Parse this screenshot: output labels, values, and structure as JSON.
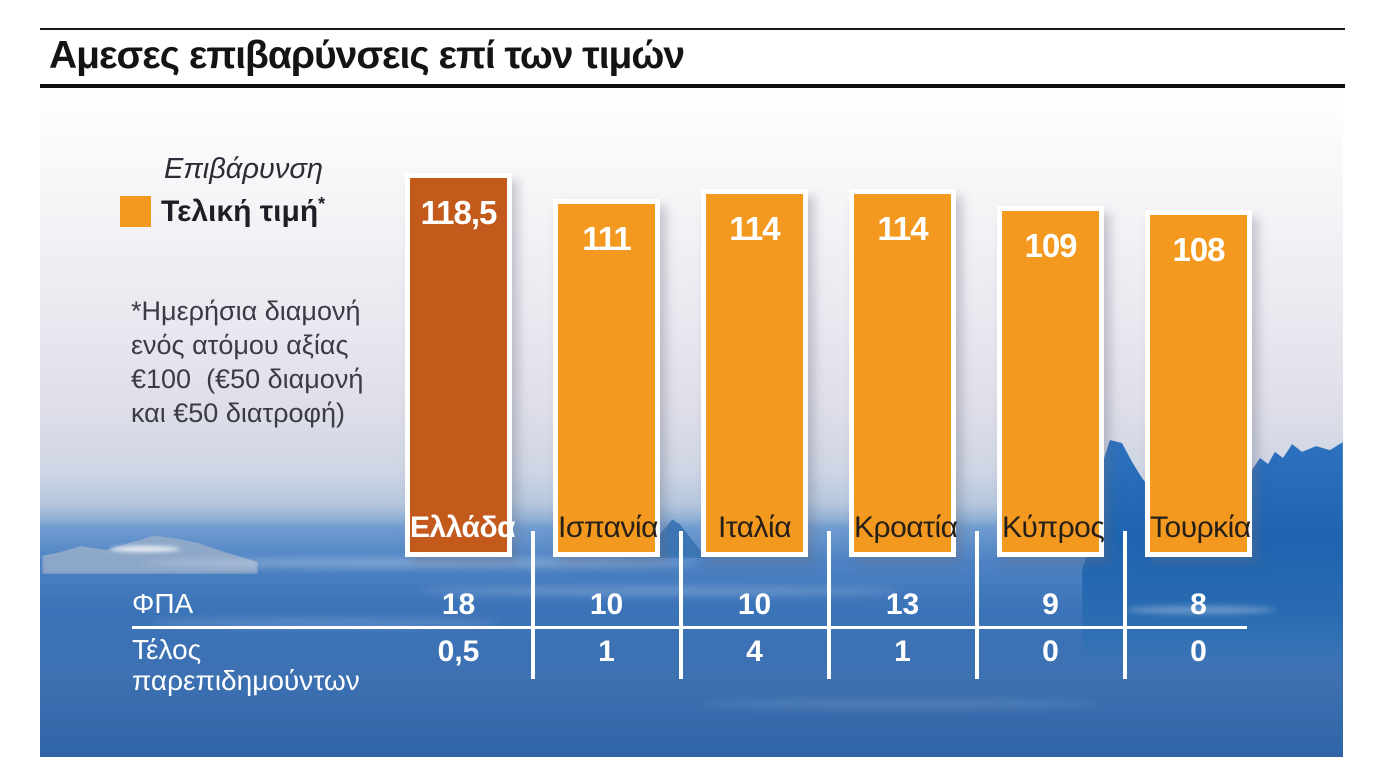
{
  "title": "Αμεσες επιβαρύνσεις επί των τιμών",
  "legend": {
    "surcharge_label": "Επιβάρυνση",
    "final_price_label": "Τελική τιμή",
    "asterisk": "*",
    "swatch_color": "#F4991F"
  },
  "footnote": {
    "lines": [
      "*Ημερήσια διαμονή",
      "ενός ατόμου αξίας",
      "€100  (€50 διαμονή",
      "και €50 διατροφή)"
    ]
  },
  "chart_data": {
    "type": "bar",
    "title": "Αμεσες επιβαρύνσεις επί των τιμών",
    "categories": [
      "Ελλάδα",
      "Ισπανία",
      "Ιταλία",
      "Κροατία",
      "Κύπρος",
      "Τουρκία"
    ],
    "series": [
      {
        "name": "Τελική τιμή*",
        "values": [
          118.5,
          111,
          114,
          114,
          109,
          108
        ],
        "display_labels": [
          "118,5",
          "111",
          "114",
          "114",
          "109",
          "108"
        ]
      }
    ],
    "highlight_index": 0,
    "legend_position": "top-left",
    "value_axis_hidden": true,
    "colors": {
      "bar": "#F4991F",
      "bar_highlight": "#C35A1B",
      "value_text": "#FFFFFF",
      "category_text": "#262019",
      "category_text_highlight": "#FFFFFF"
    },
    "table": {
      "rows": [
        {
          "label": "ΦΠΑ",
          "label_lines": [
            "ΦΠΑ"
          ],
          "values": [
            "18",
            "10",
            "10",
            "13",
            "9",
            "8"
          ]
        },
        {
          "label": "Τέλος παρεπιδημούντων",
          "label_lines": [
            "Τέλος",
            "παρεπιδημούντων"
          ],
          "values": [
            "0,5",
            "1",
            "4",
            "1",
            "0",
            "0"
          ]
        }
      ]
    }
  },
  "scene_colors": {
    "sea": "#2F6DB2",
    "sky_haze": "#EFEEF3",
    "mountain": "#2168B3",
    "island_haze": "#93ABC9"
  }
}
